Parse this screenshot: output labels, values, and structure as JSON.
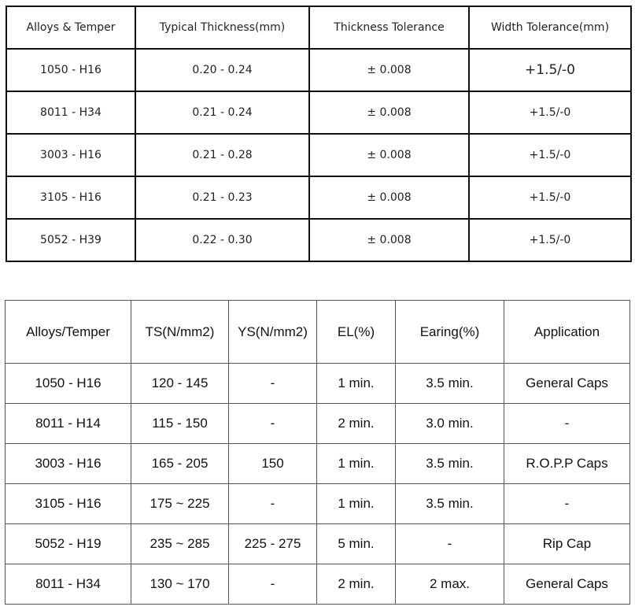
{
  "spec_table": {
    "headers": [
      "Alloys & Temper",
      "Typical Thickness(mm)",
      "Thickness Tolerance",
      "Width Tolerance(mm)"
    ],
    "rows": [
      [
        "1050 - H16",
        "0.20 - 0.24",
        "± 0.008",
        "+1.5/-0"
      ],
      [
        "8011 - H34",
        "0.21 - 0.24",
        "± 0.008",
        "+1.5/-0"
      ],
      [
        "3003 - H16",
        "0.21 - 0.28",
        "± 0.008",
        "+1.5/-0"
      ],
      [
        "3105 - H16",
        "0.21 - 0.23",
        "± 0.008",
        "+1.5/-0"
      ],
      [
        "5052 - H39",
        "0.22 - 0.30",
        "± 0.008",
        "+1.5/-0"
      ]
    ]
  },
  "property_table": {
    "headers": [
      "Alloys/Temper",
      "TS(N/mm2)",
      "YS(N/mm2)",
      "EL(%)",
      "Earing(%)",
      "Application"
    ],
    "rows": [
      [
        "1050 - H16",
        "120 - 145",
        "-",
        "1 min.",
        "3.5 min.",
        "General Caps"
      ],
      [
        "8011 - H14",
        "115 - 150",
        "-",
        "2 min.",
        "3.0 min.",
        "-"
      ],
      [
        "3003 - H16",
        "165 - 205",
        "150",
        "1 min.",
        "3.5 min.",
        "R.O.P.P Caps"
      ],
      [
        "3105 - H16",
        "175 ~ 225",
        "-",
        "1 min.",
        "3.5 min.",
        "-"
      ],
      [
        "5052 - H19",
        "235 ~ 285",
        "225 - 275",
        "5 min.",
        "-",
        "Rip Cap"
      ],
      [
        "8011 - H34",
        "130 ~ 170",
        "-",
        "2 min.",
        "2 max.",
        "General Caps"
      ]
    ]
  }
}
